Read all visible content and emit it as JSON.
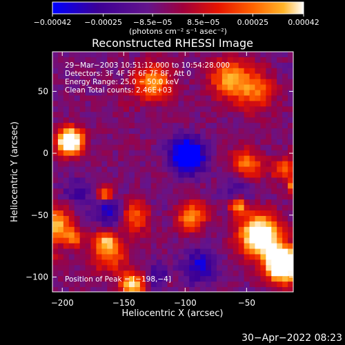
{
  "chart_data": {
    "type": "heatmap",
    "title": "Reconstructed RHESSI Image",
    "xlabel": "Heliocentric X (arcsec)",
    "ylabel": "Heliocentric Y (arcsec)",
    "xlim": [
      -208,
      -12
    ],
    "ylim": [
      -112,
      82
    ],
    "x_ticks": [
      {
        "value": -200,
        "label": "−200"
      },
      {
        "value": -150,
        "label": "−150"
      },
      {
        "value": -100,
        "label": "−100"
      },
      {
        "value": -50,
        "label": "−50"
      }
    ],
    "y_ticks": [
      {
        "value": -100,
        "label": "−100"
      },
      {
        "value": -50,
        "label": "−50"
      },
      {
        "value": 0,
        "label": "0"
      },
      {
        "value": 50,
        "label": "50"
      }
    ],
    "colorbar": {
      "range": [
        -0.00042,
        0.00042
      ],
      "ticks": [
        {
          "value": -0.00042,
          "label": "−0.00042"
        },
        {
          "value": -0.00025,
          "label": "−0.00025"
        },
        {
          "value": -8.5e-05,
          "label": "−8.5e−05"
        },
        {
          "value": 8.5e-05,
          "label": "8.5e−05"
        },
        {
          "value": 0.00025,
          "label": "0.00025"
        },
        {
          "value": 0.00042,
          "label": "0.00042"
        }
      ],
      "unit_label": "(photons cm⁻² s⁻¹ asec⁻²)"
    },
    "annotations": [
      "29−Mar−2003 10:51:12.000 to 10:54:28.000",
      "Detectors: 3F 4F 5F 6F 7F 8F, Att 0",
      "Energy Range: 25.0 − 50.0 keV",
      "Clean     Total counts: 2.46E+03"
    ],
    "peak_label": "Position of Peak = [−198,−4]",
    "peak": {
      "x": -198,
      "y": -4
    },
    "colors": {
      "background": "#000000",
      "colormap": [
        "#0000ff",
        "#3c0096",
        "#64148c",
        "#a0003c",
        "#e61400",
        "#ff6400",
        "#ffb428",
        "#ffffff"
      ]
    }
  },
  "footer": {
    "timestamp": "30−Apr−2022 08:23"
  }
}
